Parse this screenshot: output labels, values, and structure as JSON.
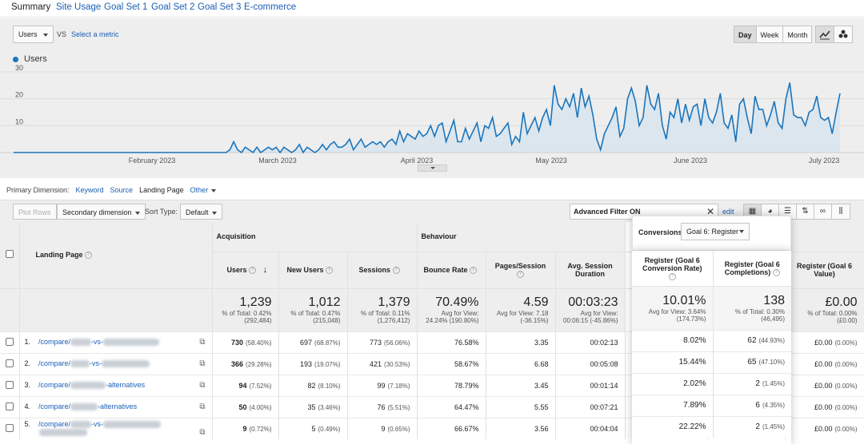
{
  "tabs": [
    "Summary",
    "Site Usage",
    "Goal Set 1",
    "Goal Set 2",
    "Goal Set 3",
    "E-commerce"
  ],
  "graph": {
    "metric": "Users",
    "vs": "VS",
    "select_metric": "Select a metric",
    "granularity": [
      "Day",
      "Week",
      "Month"
    ],
    "active_granularity": "Day",
    "legend": "Users",
    "line_color": "#1b75bb",
    "y_ticks": [
      "30",
      "20",
      "10"
    ],
    "x_labels": [
      "February 2023",
      "March 2023",
      "April 2023",
      "May 2023",
      "June 2023",
      "July 2023"
    ]
  },
  "chart_data": {
    "type": "line",
    "series": [
      {
        "name": "Users",
        "values": [
          0,
          0,
          0,
          0,
          0,
          0,
          0,
          0,
          0,
          0,
          0,
          0,
          0,
          0,
          0,
          0,
          0,
          0,
          0,
          0,
          0,
          0,
          0,
          0,
          0,
          0,
          0,
          0,
          0,
          0,
          0,
          0,
          0,
          0,
          0,
          0,
          0,
          0,
          0,
          0,
          0,
          0,
          0,
          0,
          0,
          0,
          0,
          0,
          0,
          0,
          0,
          0,
          0,
          0,
          0,
          0,
          1,
          4,
          1,
          0,
          2,
          1,
          0,
          2,
          0,
          1,
          2,
          1,
          2,
          0,
          2,
          1,
          0,
          1,
          3,
          0,
          2,
          1,
          0,
          1,
          3,
          1,
          3,
          4,
          2,
          2,
          3,
          5,
          1,
          3,
          5,
          2,
          3,
          4,
          3,
          4,
          2,
          4,
          5,
          3,
          8,
          4,
          7,
          6,
          5,
          8,
          6,
          7,
          10,
          6,
          10,
          11,
          4,
          8,
          12,
          4,
          4,
          9,
          5,
          8,
          11,
          4,
          10,
          9,
          13,
          6,
          7,
          9,
          11,
          3,
          6,
          4,
          15,
          7,
          10,
          13,
          8,
          13,
          16,
          10,
          25,
          18,
          16,
          20,
          17,
          22,
          13,
          24,
          17,
          21,
          14,
          5,
          1,
          7,
          10,
          13,
          17,
          6,
          9,
          20,
          24,
          19,
          10,
          13,
          25,
          18,
          16,
          22,
          10,
          5,
          15,
          13,
          20,
          11,
          18,
          12,
          17,
          18,
          10,
          20,
          13,
          11,
          15,
          22,
          11,
          9,
          14,
          4,
          18,
          20,
          13,
          7,
          21,
          16,
          16,
          10,
          14,
          19,
          11,
          9,
          20,
          26,
          14,
          13,
          13,
          10,
          15,
          16,
          21,
          13,
          12,
          13,
          7,
          15,
          22
        ]
      }
    ],
    "x_labels": [
      "February 2023",
      "March 2023",
      "April 2023",
      "May 2023",
      "June 2023",
      "July 2023"
    ],
    "ylim": [
      0,
      30
    ],
    "yticks": [
      10,
      20,
      30
    ]
  },
  "primary_dimension": {
    "label": "Primary Dimension:",
    "options": [
      "Keyword",
      "Source",
      "Landing Page",
      "Other"
    ],
    "current": "Landing Page"
  },
  "controls": {
    "plot_rows": "Plot Rows",
    "secondary_dimension": "Secondary dimension",
    "sort_type_label": "Sort Type:",
    "sort_type": "Default",
    "filter": "Advanced Filter ON",
    "edit": "edit"
  },
  "table": {
    "landing_page": "Landing Page",
    "groups": {
      "acquisition": "Acquisition",
      "behaviour": "Behaviour",
      "conversions": "Conversions",
      "goal_select": "Goal 6: Register"
    },
    "columns": [
      "Users",
      "New Users",
      "Sessions",
      "Bounce Rate",
      "Pages/Session",
      "Avg. Session Duration",
      "Register (Goal 6 Conversion Rate)",
      "Register (Goal 6 Completions)",
      "Register (Goal 6 Value)"
    ],
    "totals": [
      {
        "value": "1,239",
        "sub": "% of Total: 0.42%",
        "sub2": "(292,484)"
      },
      {
        "value": "1,012",
        "sub": "% of Total: 0.47%",
        "sub2": "(215,048)"
      },
      {
        "value": "1,379",
        "sub": "% of Total: 0.11%",
        "sub2": "(1,276,412)"
      },
      {
        "value": "70.49%",
        "sub": "Avg for View:",
        "sub2": "24.24% (190.80%)"
      },
      {
        "value": "4.59",
        "sub": "Avg for View: 7.18",
        "sub2": "(-36.15%)"
      },
      {
        "value": "00:03:23",
        "sub": "Avg for View:",
        "sub2": "00:06:15 (-45.86%)"
      },
      {
        "value": "10.01%",
        "sub": "Avg for View: 3.64%",
        "sub2": "(174.73%)"
      },
      {
        "value": "138",
        "sub": "% of Total: 0.30%",
        "sub2": "(46,495)"
      },
      {
        "value": "£0.00",
        "sub": "% of Total: 0.00%",
        "sub2": "(£0.00)"
      }
    ],
    "rows": [
      {
        "n": "1.",
        "url_a": "/compare/",
        "url_b": "-vs-",
        "url_c": "",
        "users": "730",
        "users_pct": "(58.40%)",
        "new": "697",
        "new_pct": "(68.87%)",
        "sess": "773",
        "sess_pct": "(56.06%)",
        "bounce": "76.58%",
        "pps": "3.35",
        "dur": "00:02:13",
        "cr": "8.02%",
        "comp": "62",
        "comp_pct": "(44.93%)",
        "val": "£0.00",
        "val_pct": "(0.00%)"
      },
      {
        "n": "2.",
        "url_a": "/compare/",
        "url_b": "-vs-",
        "url_c": "",
        "users": "366",
        "users_pct": "(29.28%)",
        "new": "193",
        "new_pct": "(19.07%)",
        "sess": "421",
        "sess_pct": "(30.53%)",
        "bounce": "58.67%",
        "pps": "6.68",
        "dur": "00:05:08",
        "cr": "15.44%",
        "comp": "65",
        "comp_pct": "(47.10%)",
        "val": "£0.00",
        "val_pct": "(0.00%)"
      },
      {
        "n": "3.",
        "url_a": "/compare/",
        "url_b": "",
        "url_c": "-alternatives",
        "users": "94",
        "users_pct": "(7.52%)",
        "new": "82",
        "new_pct": "(8.10%)",
        "sess": "99",
        "sess_pct": "(7.18%)",
        "bounce": "78.79%",
        "pps": "3.45",
        "dur": "00:01:14",
        "cr": "2.02%",
        "comp": "2",
        "comp_pct": "(1.45%)",
        "val": "£0.00",
        "val_pct": "(0.00%)"
      },
      {
        "n": "4.",
        "url_a": "/compare/",
        "url_b": "",
        "url_c": "-alternatives",
        "users": "50",
        "users_pct": "(4.00%)",
        "new": "35",
        "new_pct": "(3.46%)",
        "sess": "76",
        "sess_pct": "(5.51%)",
        "bounce": "64.47%",
        "pps": "5.55",
        "dur": "00:07:21",
        "cr": "7.89%",
        "comp": "6",
        "comp_pct": "(4.35%)",
        "val": "£0.00",
        "val_pct": "(0.00%)"
      },
      {
        "n": "5.",
        "url_a": "/compare/",
        "url_b": "-vs-",
        "url_c": "",
        "users": "9",
        "users_pct": "(0.72%)",
        "new": "5",
        "new_pct": "(0.49%)",
        "sess": "9",
        "sess_pct": "(0.65%)",
        "bounce": "66.67%",
        "pps": "3.56",
        "dur": "00:04:04",
        "cr": "22.22%",
        "comp": "2",
        "comp_pct": "(1.45%)",
        "val": "£0.00",
        "val_pct": "(0.00%)"
      }
    ]
  }
}
